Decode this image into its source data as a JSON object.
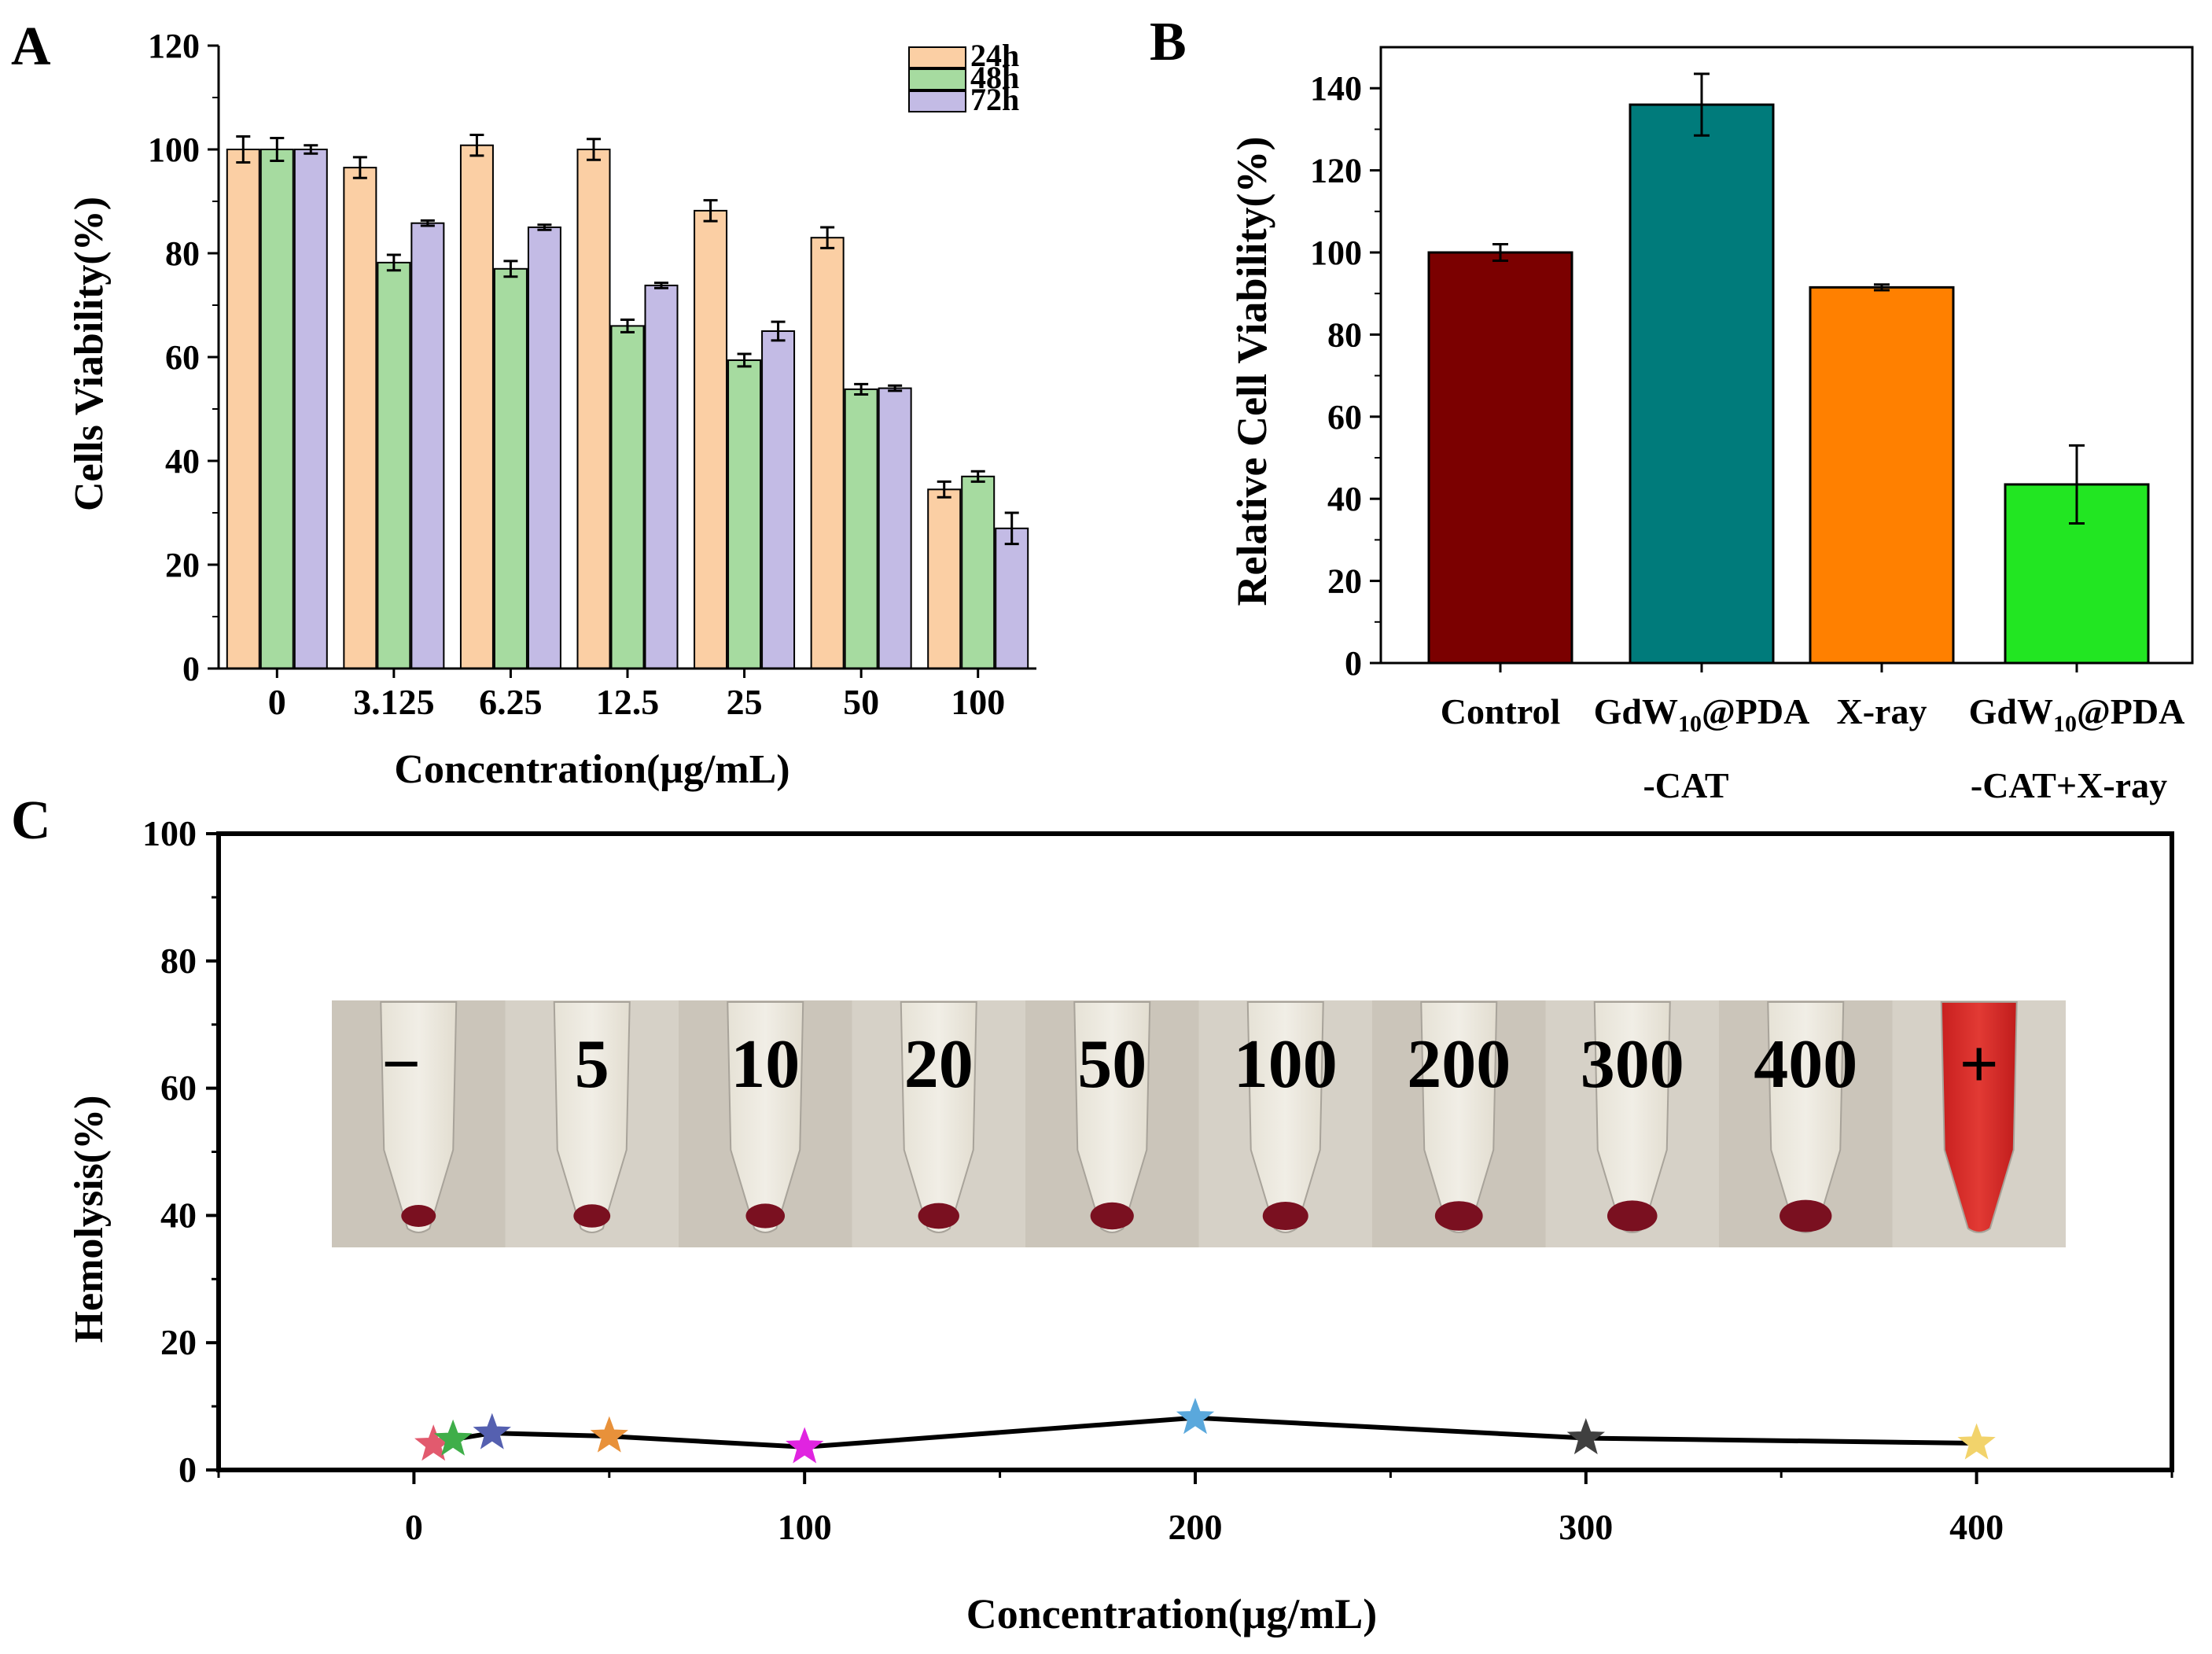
{
  "chart_data": [
    {
      "panel": "A",
      "type": "bar",
      "xlabel": "Concentration(μg/mL)",
      "ylabel": "Cells Viability(%)",
      "ylim": [
        0,
        120
      ],
      "yticks": [
        0,
        20,
        40,
        60,
        80,
        100,
        120
      ],
      "legend_position": "top-right",
      "categories": [
        "0",
        "3.125",
        "6.25",
        "12.5",
        "25",
        "50",
        "100"
      ],
      "series": [
        {
          "name": "24h",
          "color": "#FBCFA4",
          "values": [
            100,
            96.5,
            100.8,
            100,
            88.2,
            83,
            34.5
          ],
          "errors": [
            2.5,
            2,
            2,
            2,
            2,
            2,
            1.5
          ]
        },
        {
          "name": "48h",
          "color": "#A6DBA0",
          "values": [
            100,
            78.2,
            77,
            66,
            59.4,
            53.8,
            37
          ],
          "errors": [
            2.2,
            1.5,
            1.5,
            1.2,
            1.2,
            1,
            1
          ]
        },
        {
          "name": "72h",
          "color": "#C3BBE5",
          "values": [
            100,
            85.8,
            85,
            73.8,
            65,
            54,
            27
          ],
          "errors": [
            0.8,
            0.5,
            0.5,
            0.5,
            1.8,
            0.5,
            3
          ]
        }
      ]
    },
    {
      "panel": "B",
      "type": "bar",
      "ylabel": "Relative Cell Viability(%)",
      "ylim": [
        0,
        150
      ],
      "yticks": [
        0,
        20,
        40,
        60,
        80,
        100,
        120,
        140
      ],
      "categories": [
        {
          "line1": "Control",
          "line2": ""
        },
        {
          "line1": "GdW",
          "sub": "10",
          "rest": "@PDA",
          "line2": "-CAT"
        },
        {
          "line1": "X-ray",
          "line2": ""
        },
        {
          "line1": "GdW",
          "sub": "10",
          "rest": "@PDA",
          "line2": "-CAT+X-ray"
        }
      ],
      "values": [
        100,
        136,
        91.5,
        43.5
      ],
      "errors": [
        2,
        7.5,
        0.7,
        9.5
      ],
      "colors": [
        "#7B0000",
        "#007B7B",
        "#FF8000",
        "#22E622"
      ]
    },
    {
      "panel": "C",
      "type": "line",
      "xlabel": "Concentration(μg/mL)",
      "ylabel": "Hemolysis(%)",
      "xlim": [
        -50,
        450
      ],
      "ylim": [
        0,
        100
      ],
      "xticks": [
        0,
        100,
        200,
        300,
        400
      ],
      "yticks": [
        0,
        20,
        40,
        60,
        80,
        100
      ],
      "x": [
        5,
        10,
        20,
        50,
        100,
        200,
        300,
        400
      ],
      "y": [
        4,
        4.8,
        5.8,
        5.3,
        3.6,
        8.2,
        5,
        4.2
      ],
      "marker_colors": [
        "#E25A6E",
        "#3FAE49",
        "#5560B0",
        "#E8913A",
        "#E024E0",
        "#5AA8DC",
        "#404040",
        "#F2D36B"
      ],
      "inset_labels": [
        "−",
        "5",
        "10",
        "20",
        "50",
        "100",
        "200",
        "300",
        "400",
        "+"
      ]
    }
  ],
  "panel_labels": [
    "A",
    "B",
    "C"
  ]
}
